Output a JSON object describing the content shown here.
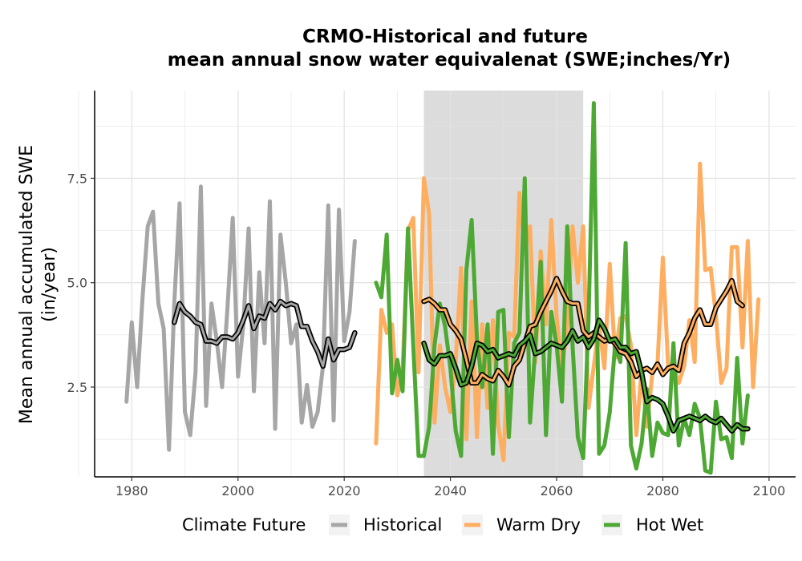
{
  "chart_data": {
    "type": "line",
    "title_line1": "CRMO-Historical and future",
    "title_line2": "mean annual snow water equivalenat (SWE;inches/Yr)",
    "ylabel_line1": "Mean annual accumulated SWE",
    "ylabel_line2": "(in/year)",
    "xlabel": "",
    "xlim": [
      1973,
      2105
    ],
    "ylim": [
      0.35,
      9.6
    ],
    "x_ticks": [
      1980,
      2000,
      2020,
      2040,
      2060,
      2080,
      2100
    ],
    "x_tick_labels": [
      "1980",
      "2000",
      "2020",
      "2040",
      "2060",
      "2080",
      "2100"
    ],
    "y_ticks": [
      2.5,
      5.0,
      7.5
    ],
    "y_tick_labels": [
      "2.5",
      "5.0",
      "7.5"
    ],
    "grid": true,
    "shaded_period": [
      2035,
      2065
    ],
    "legend": {
      "title": "Climate Future",
      "position": "bottom",
      "entries": [
        "Historical",
        "Warm Dry",
        "Hot Wet"
      ]
    },
    "colors": {
      "Historical": "#a6a6a6",
      "Warm Dry": "#fdae61",
      "Hot Wet": "#4da834",
      "shade": "#dcdcdc",
      "smooth_outline": "#000000"
    },
    "series": [
      {
        "name": "Historical",
        "x_start": 1979,
        "values": [
          2.15,
          4.05,
          2.5,
          4.6,
          6.35,
          6.7,
          4.5,
          3.9,
          1.0,
          4.5,
          6.9,
          1.9,
          1.35,
          2.85,
          7.3,
          2.05,
          4.5,
          3.6,
          2.5,
          4.35,
          6.55,
          2.75,
          4.0,
          6.3,
          2.4,
          5.25,
          3.55,
          6.95,
          1.5,
          6.15,
          5.0,
          3.55,
          4.0,
          1.65,
          2.55,
          1.55,
          1.9,
          3.0,
          6.85,
          1.7,
          6.75,
          3.6,
          4.3,
          6.0
        ]
      },
      {
        "name": "Warm Dry",
        "x_start": 2026,
        "values": [
          1.15,
          4.35,
          3.8,
          4.0,
          2.3,
          2.9,
          6.25,
          6.55,
          2.85,
          7.5,
          6.65,
          1.65,
          3.5,
          2.5,
          1.9,
          3.1,
          5.35,
          1.25,
          4.55,
          1.3,
          4.0,
          2.0,
          4.1,
          1.6,
          0.75,
          3.8,
          3.7,
          7.15,
          5.8,
          6.35,
          3.1,
          5.75,
          4.0,
          6.5,
          4.2,
          2.9,
          3.95,
          6.35,
          5.0,
          6.35,
          2.0,
          3.0,
          4.0,
          2.95,
          5.45,
          3.2,
          4.15,
          4.2,
          3.5,
          1.35,
          2.9,
          1.55,
          2.8,
          3.05,
          5.6,
          3.0,
          3.0,
          2.6,
          3.0,
          4.1,
          3.1,
          7.85,
          5.3,
          5.35,
          4.2,
          2.6,
          2.95,
          5.85,
          5.85,
          3.45,
          6.0,
          2.5,
          4.6
        ]
      },
      {
        "name": "Hot Wet",
        "x_start": 2026,
        "values": [
          5.0,
          4.65,
          6.15,
          2.35,
          3.15,
          2.4,
          6.3,
          3.5,
          0.85,
          0.85,
          1.55,
          3.5,
          4.5,
          3.95,
          2.95,
          1.45,
          0.85,
          5.3,
          6.5,
          3.65,
          2.5,
          4.0,
          0.9,
          4.3,
          4.35,
          1.3,
          3.55,
          3.8,
          7.5,
          1.65,
          3.5,
          5.5,
          1.35,
          4.3,
          3.5,
          2.15,
          6.35,
          3.5,
          1.3,
          0.8,
          4.1,
          9.3,
          0.9,
          1.1,
          1.9,
          3.5,
          3.1,
          5.95,
          1.1,
          0.55,
          1.15,
          2.45,
          0.85,
          1.65,
          1.4,
          1.35,
          3.55,
          1.1,
          1.75,
          1.35,
          2.1,
          1.75,
          0.5,
          0.45,
          2.15,
          1.25,
          1.3,
          0.8,
          3.2,
          1.15,
          2.3
        ]
      },
      {
        "name": "Historical smoothed",
        "x_start": 1988,
        "values": [
          4.05,
          4.5,
          4.3,
          4.2,
          4.05,
          4.0,
          3.6,
          3.6,
          3.55,
          3.7,
          3.7,
          3.65,
          3.8,
          4.1,
          4.45,
          3.9,
          4.2,
          4.15,
          4.5,
          4.35,
          4.55,
          4.45,
          4.5,
          4.45,
          3.95,
          3.95,
          3.6,
          3.35,
          3.0,
          3.65,
          3.15,
          3.4,
          3.4,
          3.45,
          3.8
        ]
      },
      {
        "name": "Warm Dry smoothed",
        "x_start": 2035,
        "values": [
          4.55,
          4.6,
          4.5,
          4.35,
          4.35,
          4.0,
          3.85,
          3.65,
          3.15,
          2.6,
          2.6,
          2.8,
          2.7,
          2.65,
          2.9,
          2.75,
          2.55,
          3.0,
          3.15,
          3.55,
          3.95,
          4.0,
          4.3,
          4.55,
          4.8,
          5.1,
          4.8,
          4.55,
          4.5,
          4.5,
          3.85,
          3.7,
          3.8,
          3.7,
          3.6,
          3.65,
          3.55,
          3.35,
          3.3,
          3.1,
          2.75,
          2.9,
          2.95,
          2.85,
          3.05,
          2.8,
          2.95,
          3.0,
          2.9,
          3.55,
          3.8,
          4.15,
          4.35,
          4.0,
          4.0,
          4.4,
          4.6,
          4.8,
          5.05,
          4.55,
          4.45
        ]
      },
      {
        "name": "Hot Wet smoothed",
        "x_start": 2035,
        "values": [
          3.55,
          3.15,
          3.05,
          3.25,
          3.25,
          3.3,
          2.95,
          2.55,
          2.6,
          3.0,
          3.55,
          3.5,
          3.35,
          3.4,
          3.2,
          3.25,
          3.3,
          3.25,
          3.5,
          3.6,
          3.75,
          3.3,
          3.35,
          3.45,
          3.55,
          3.5,
          3.45,
          3.6,
          3.85,
          3.6,
          3.7,
          3.45,
          3.65,
          4.1,
          3.9,
          3.6,
          3.65,
          3.45,
          3.45,
          3.3,
          3.35,
          2.85,
          2.15,
          2.25,
          2.2,
          2.1,
          1.8,
          1.45,
          1.7,
          1.75,
          1.8,
          1.75,
          1.7,
          1.8,
          1.7,
          1.65,
          1.75,
          1.6,
          1.45,
          1.6,
          1.5,
          1.5
        ]
      }
    ]
  }
}
